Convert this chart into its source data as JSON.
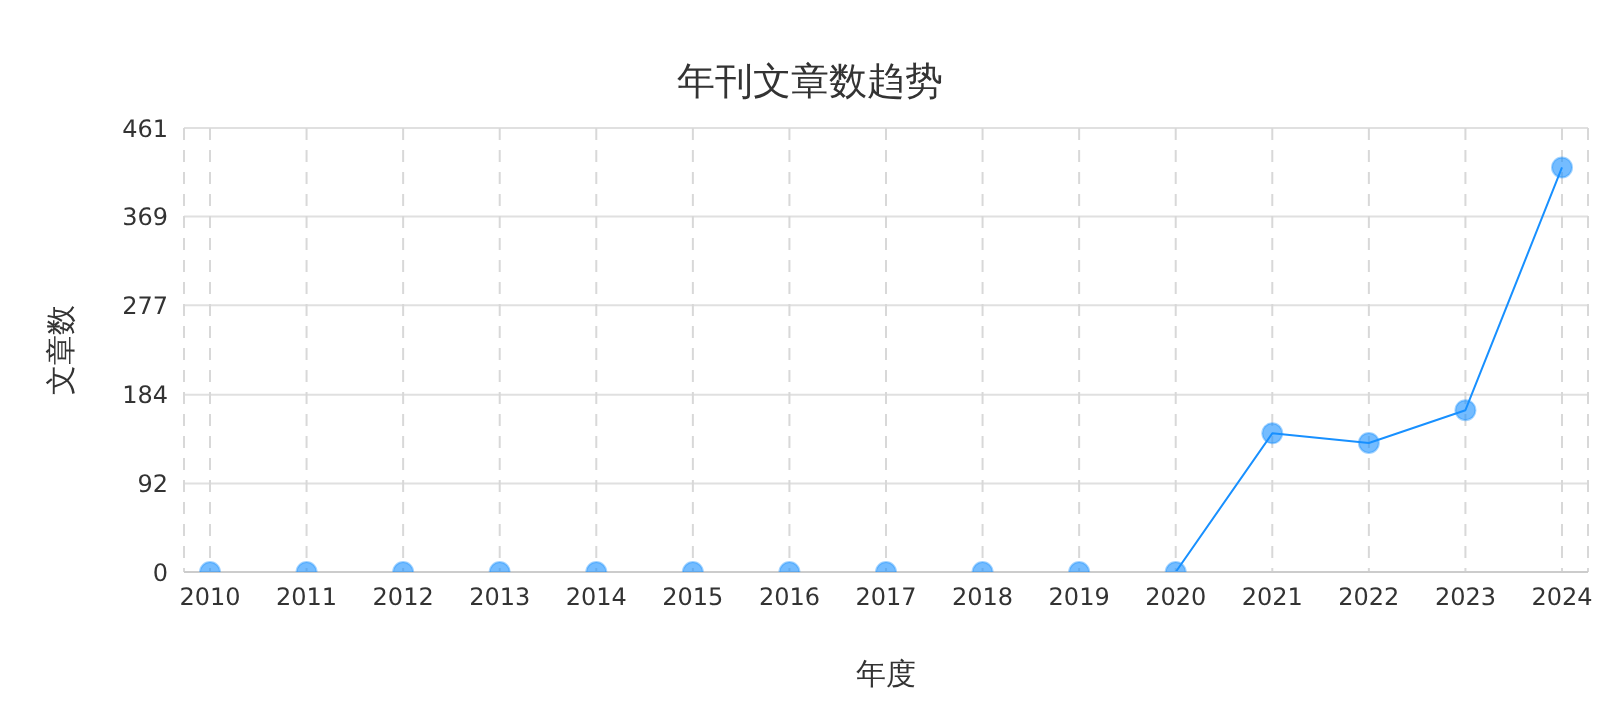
{
  "chart_data": {
    "type": "line",
    "title": "年刊文章数趋势",
    "xlabel": "年度",
    "ylabel": "文章数",
    "categories": [
      "2010",
      "2011",
      "2012",
      "2013",
      "2014",
      "2015",
      "2016",
      "2017",
      "2018",
      "2019",
      "2020",
      "2021",
      "2022",
      "2023",
      "2024"
    ],
    "series": [
      {
        "color": "#1890ff",
        "values": [
          0,
          0,
          0,
          0,
          0,
          0,
          0,
          0,
          0,
          0,
          0,
          144,
          134,
          168,
          420
        ]
      }
    ],
    "ylim": [
      0,
      461
    ],
    "yticks": [
      0,
      92,
      184,
      277,
      369,
      461
    ],
    "grid": true,
    "marker": "circle",
    "line_style": "solid"
  }
}
